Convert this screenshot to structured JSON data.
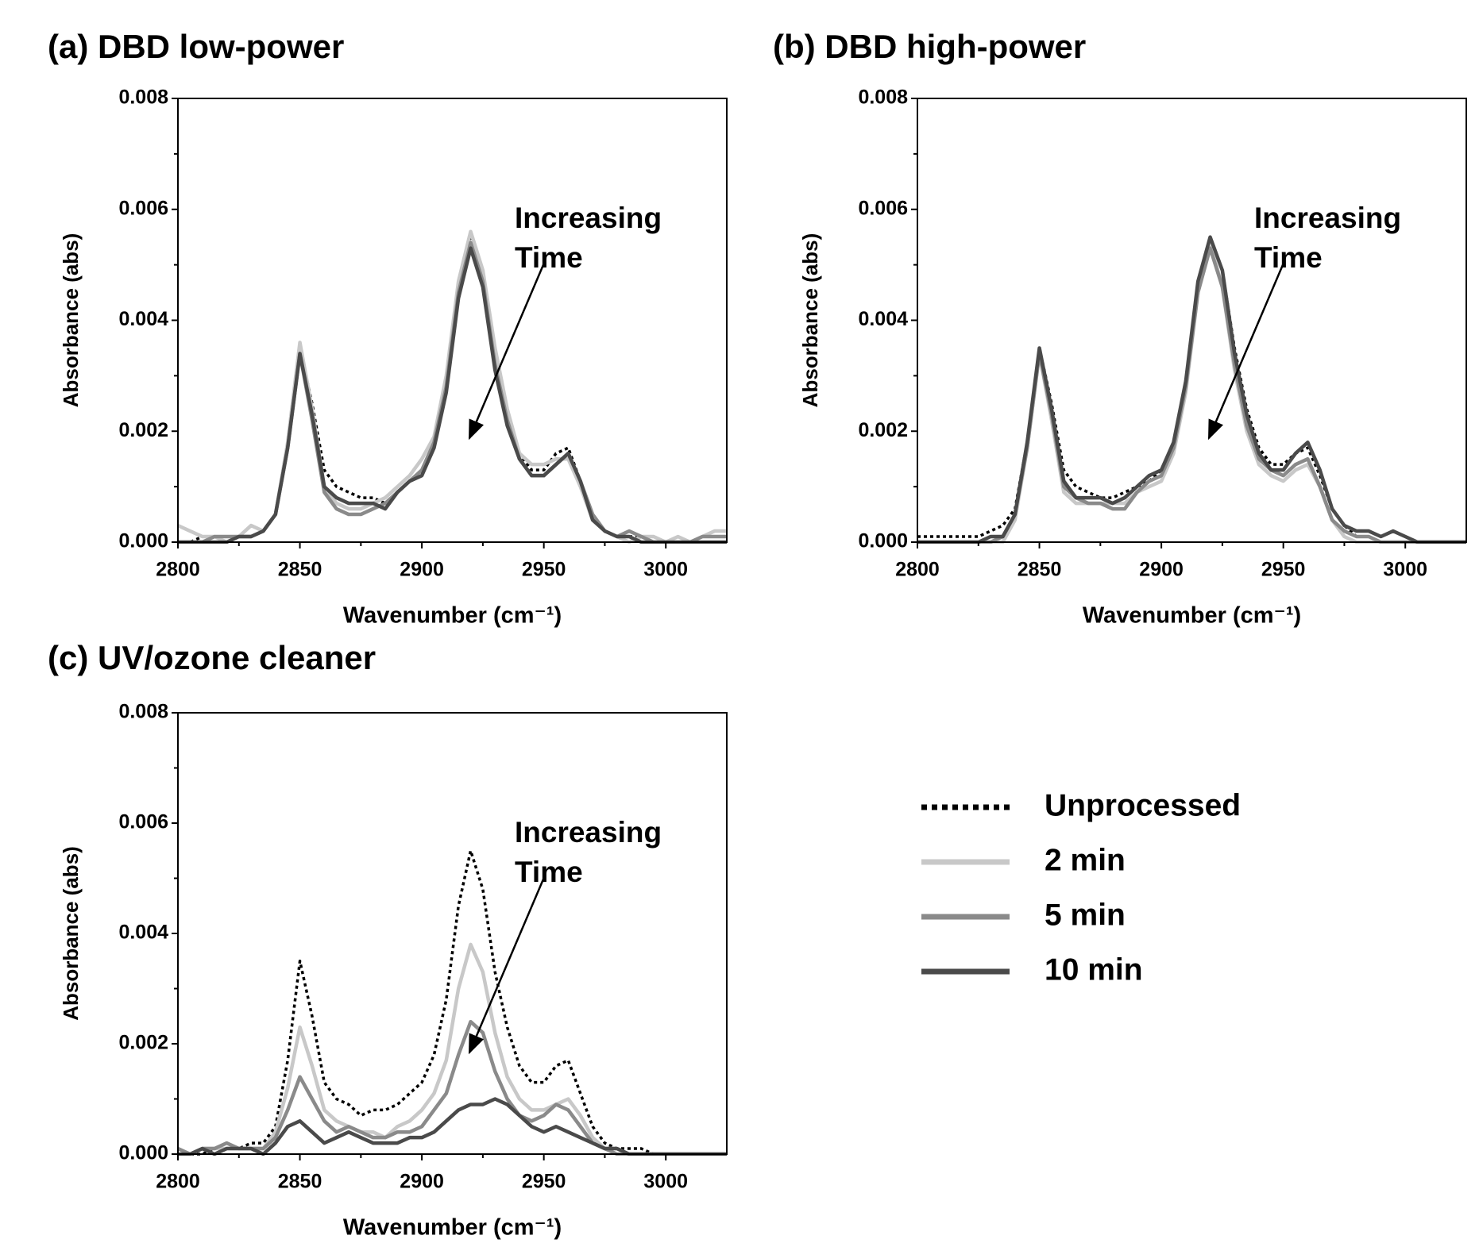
{
  "chart_data": [
    {
      "type": "line",
      "title": "(a) DBD low-power",
      "xlabel": "Wavenumber (cm⁻¹)",
      "ylabel": "Absorbance (abs)",
      "annotation_lines": [
        "Increasing",
        "Time"
      ],
      "xlim": [
        2800,
        3025
      ],
      "ylim": [
        0,
        0.008
      ],
      "xticks": [
        2800,
        2850,
        2900,
        2950,
        3000
      ],
      "xminor": [
        2825,
        2875,
        2925,
        2975
      ],
      "yticks": [
        {
          "value": 0,
          "label": "0.000"
        },
        {
          "value": 0.002,
          "label": "0.002"
        },
        {
          "value": 0.004,
          "label": "0.004"
        },
        {
          "value": 0.006,
          "label": "0.006"
        },
        {
          "value": 0.008,
          "label": "0.008"
        }
      ],
      "yminor": [
        0.001,
        0.003,
        0.005,
        0.007
      ],
      "x": [
        2800,
        2805,
        2810,
        2815,
        2820,
        2825,
        2830,
        2835,
        2840,
        2845,
        2850,
        2855,
        2860,
        2865,
        2870,
        2875,
        2880,
        2885,
        2890,
        2895,
        2900,
        2905,
        2910,
        2915,
        2920,
        2925,
        2930,
        2935,
        2940,
        2945,
        2950,
        2955,
        2960,
        2965,
        2970,
        2975,
        2980,
        2985,
        2990,
        2995,
        3000,
        3005,
        3010,
        3015,
        3020,
        3025
      ],
      "series": [
        {
          "color": "#000000",
          "linestyle": "dotted",
          "values": [
            0.0,
            0.0,
            0.0001,
            0.0001,
            0.0001,
            0.0001,
            0.0001,
            0.0002,
            0.0005,
            0.0017,
            0.0035,
            0.0025,
            0.0013,
            0.001,
            0.0009,
            0.0008,
            0.0008,
            0.0007,
            0.0009,
            0.0011,
            0.0013,
            0.0018,
            0.0028,
            0.0045,
            0.0055,
            0.0048,
            0.0033,
            0.0023,
            0.0016,
            0.0013,
            0.0013,
            0.0016,
            0.0017,
            0.0011,
            0.0005,
            0.0002,
            0.0001,
            0.0001,
            0.0001,
            0.0,
            0.0,
            0.0,
            0.0,
            0.0,
            0.0,
            0.0
          ]
        },
        {
          "color": "#c8c8c8",
          "linestyle": "solid",
          "values": [
            0.0003,
            0.0002,
            0.0001,
            0.0001,
            0.0,
            0.0001,
            0.0003,
            0.0002,
            0.0005,
            0.0018,
            0.0036,
            0.0024,
            0.001,
            0.0007,
            0.0006,
            0.0006,
            0.0007,
            0.0008,
            0.001,
            0.0012,
            0.0015,
            0.0019,
            0.003,
            0.0047,
            0.0056,
            0.0049,
            0.0035,
            0.0024,
            0.0016,
            0.0014,
            0.0014,
            0.0015,
            0.0015,
            0.001,
            0.0004,
            0.0002,
            0.0001,
            0.0,
            0.0001,
            0.0001,
            0.0,
            0.0001,
            0.0,
            0.0001,
            0.0002,
            0.0002
          ]
        },
        {
          "color": "#8a8a8a",
          "linestyle": "solid",
          "values": [
            0.0,
            0.0,
            0.0,
            0.0001,
            0.0001,
            0.0001,
            0.0001,
            0.0002,
            0.0005,
            0.0017,
            0.0034,
            0.0022,
            0.0009,
            0.0006,
            0.0005,
            0.0005,
            0.0006,
            0.0007,
            0.0009,
            0.0011,
            0.0013,
            0.0018,
            0.0028,
            0.0045,
            0.0054,
            0.0047,
            0.0032,
            0.0022,
            0.0015,
            0.0012,
            0.0012,
            0.0014,
            0.0016,
            0.0011,
            0.0005,
            0.0002,
            0.0001,
            0.0002,
            0.0001,
            0.0,
            0.0,
            0.0,
            0.0,
            0.0001,
            0.0001,
            0.0001
          ]
        },
        {
          "color": "#4a4a4a",
          "linestyle": "solid",
          "values": [
            0.0,
            0.0,
            0.0,
            0.0,
            0.0,
            0.0001,
            0.0001,
            0.0002,
            0.0005,
            0.0017,
            0.0034,
            0.0023,
            0.001,
            0.0008,
            0.0007,
            0.0007,
            0.0007,
            0.0006,
            0.0009,
            0.0011,
            0.0012,
            0.0017,
            0.0027,
            0.0044,
            0.0053,
            0.0046,
            0.0031,
            0.0021,
            0.0015,
            0.0012,
            0.0012,
            0.0014,
            0.0016,
            0.0011,
            0.0004,
            0.0002,
            0.0001,
            0.0001,
            0.0,
            0.0,
            0.0,
            0.0,
            0.0,
            0.0,
            0.0,
            0.0
          ]
        }
      ]
    },
    {
      "type": "line",
      "title": "(b) DBD high-power",
      "xlabel": "Wavenumber (cm⁻¹)",
      "ylabel": "Absorbance (abs)",
      "annotation_lines": [
        "Increasing",
        "Time"
      ],
      "xlim": [
        2800,
        3025
      ],
      "ylim": [
        0,
        0.008
      ],
      "xticks": [
        2800,
        2850,
        2900,
        2950,
        3000
      ],
      "xminor": [
        2825,
        2875,
        2925,
        2975
      ],
      "yticks": [
        {
          "value": 0,
          "label": "0.000"
        },
        {
          "value": 0.002,
          "label": "0.002"
        },
        {
          "value": 0.004,
          "label": "0.004"
        },
        {
          "value": 0.006,
          "label": "0.006"
        },
        {
          "value": 0.008,
          "label": "0.008"
        }
      ],
      "yminor": [
        0.001,
        0.003,
        0.005,
        0.007
      ],
      "x": [
        2800,
        2805,
        2810,
        2815,
        2820,
        2825,
        2830,
        2835,
        2840,
        2845,
        2850,
        2855,
        2860,
        2865,
        2870,
        2875,
        2880,
        2885,
        2890,
        2895,
        2900,
        2905,
        2910,
        2915,
        2920,
        2925,
        2930,
        2935,
        2940,
        2945,
        2950,
        2955,
        2960,
        2965,
        2970,
        2975,
        2980,
        2985,
        2990,
        2995,
        3000,
        3005,
        3010,
        3015,
        3020,
        3025
      ],
      "series": [
        {
          "color": "#000000",
          "linestyle": "dotted",
          "values": [
            0.0001,
            0.0001,
            0.0001,
            0.0001,
            0.0001,
            0.0001,
            0.0002,
            0.0003,
            0.0006,
            0.0018,
            0.0035,
            0.0025,
            0.0013,
            0.001,
            0.0009,
            0.0008,
            0.0008,
            0.0009,
            0.001,
            0.0011,
            0.0013,
            0.0018,
            0.0029,
            0.0046,
            0.0055,
            0.0049,
            0.0035,
            0.0024,
            0.0017,
            0.0014,
            0.0014,
            0.0016,
            0.0017,
            0.0012,
            0.0006,
            0.0003,
            0.0001,
            0.0001,
            0.0,
            0.0,
            0.0,
            0.0,
            0.0,
            0.0,
            0.0,
            0.0
          ]
        },
        {
          "color": "#c8c8c8",
          "linestyle": "solid",
          "values": [
            0.0,
            0.0,
            0.0,
            0.0,
            0.0,
            0.0,
            0.0,
            0.0,
            0.0004,
            0.0017,
            0.0034,
            0.0022,
            0.0009,
            0.0007,
            0.0007,
            0.0007,
            0.0007,
            0.0007,
            0.0009,
            0.001,
            0.0011,
            0.0016,
            0.0027,
            0.0045,
            0.0054,
            0.0046,
            0.0031,
            0.002,
            0.0014,
            0.0012,
            0.0011,
            0.0013,
            0.0014,
            0.001,
            0.0004,
            0.0001,
            0.0,
            0.0,
            0.0,
            0.0,
            0.0,
            0.0,
            0.0,
            0.0,
            0.0,
            0.0
          ]
        },
        {
          "color": "#8a8a8a",
          "linestyle": "solid",
          "values": [
            0.0,
            0.0,
            0.0,
            0.0,
            0.0,
            0.0,
            0.0,
            0.0001,
            0.0005,
            0.0017,
            0.0034,
            0.0023,
            0.001,
            0.0008,
            0.0007,
            0.0007,
            0.0006,
            0.0006,
            0.0009,
            0.0011,
            0.0012,
            0.0017,
            0.0028,
            0.0045,
            0.0053,
            0.0046,
            0.0032,
            0.0021,
            0.0015,
            0.0013,
            0.0012,
            0.0014,
            0.0015,
            0.001,
            0.0004,
            0.0002,
            0.0001,
            0.0001,
            0.0,
            0.0,
            0.0,
            0.0,
            0.0,
            0.0,
            0.0,
            0.0
          ]
        },
        {
          "color": "#4a4a4a",
          "linestyle": "solid",
          "values": [
            0.0,
            0.0,
            0.0,
            0.0,
            0.0,
            0.0,
            0.0001,
            0.0001,
            0.0005,
            0.0018,
            0.0035,
            0.0024,
            0.0011,
            0.0008,
            0.0008,
            0.0008,
            0.0007,
            0.0008,
            0.001,
            0.0012,
            0.0013,
            0.0018,
            0.0029,
            0.0047,
            0.0055,
            0.0049,
            0.0034,
            0.0023,
            0.0016,
            0.0013,
            0.0013,
            0.0016,
            0.0018,
            0.0013,
            0.0006,
            0.0003,
            0.0002,
            0.0002,
            0.0001,
            0.0002,
            0.0001,
            0.0,
            0.0,
            0.0,
            0.0,
            0.0
          ]
        }
      ]
    },
    {
      "type": "line",
      "title": "(c) UV/ozone cleaner",
      "xlabel": "Wavenumber (cm⁻¹)",
      "ylabel": "Absorbance (abs)",
      "annotation_lines": [
        "Increasing",
        "Time"
      ],
      "legend": "right",
      "xlim": [
        2800,
        3025
      ],
      "ylim": [
        0,
        0.008
      ],
      "xticks": [
        2800,
        2850,
        2900,
        2950,
        3000
      ],
      "xminor": [
        2825,
        2875,
        2925,
        2975
      ],
      "yticks": [
        {
          "value": 0,
          "label": "0.000"
        },
        {
          "value": 0.002,
          "label": "0.002"
        },
        {
          "value": 0.004,
          "label": "0.004"
        },
        {
          "value": 0.006,
          "label": "0.006"
        },
        {
          "value": 0.008,
          "label": "0.008"
        }
      ],
      "yminor": [
        0.001,
        0.003,
        0.005,
        0.007
      ],
      "x": [
        2800,
        2805,
        2810,
        2815,
        2820,
        2825,
        2830,
        2835,
        2840,
        2845,
        2850,
        2855,
        2860,
        2865,
        2870,
        2875,
        2880,
        2885,
        2890,
        2895,
        2900,
        2905,
        2910,
        2915,
        2920,
        2925,
        2930,
        2935,
        2940,
        2945,
        2950,
        2955,
        2960,
        2965,
        2970,
        2975,
        2980,
        2985,
        2990,
        2995,
        3000,
        3005,
        3010,
        3015,
        3020,
        3025
      ],
      "series": [
        {
          "name": "Unprocessed",
          "color": "#000000",
          "linestyle": "dotted",
          "values": [
            0.0,
            0.0,
            0.0,
            0.0001,
            0.0001,
            0.0001,
            0.0002,
            0.0002,
            0.0005,
            0.0017,
            0.0035,
            0.0025,
            0.0013,
            0.001,
            0.0009,
            0.0007,
            0.0008,
            0.0008,
            0.0009,
            0.0011,
            0.0013,
            0.0018,
            0.0028,
            0.0045,
            0.0055,
            0.0048,
            0.0033,
            0.0023,
            0.0016,
            0.0013,
            0.0013,
            0.0016,
            0.0017,
            0.0011,
            0.0005,
            0.0002,
            0.0001,
            0.0001,
            0.0001,
            0.0,
            0.0,
            0.0,
            0.0,
            0.0,
            0.0,
            0.0
          ]
        },
        {
          "name": "2 min",
          "color": "#c8c8c8",
          "linestyle": "solid",
          "values": [
            0.0001,
            0.0,
            0.0001,
            0.0001,
            0.0001,
            0.0001,
            0.0001,
            0.0001,
            0.0004,
            0.0012,
            0.0023,
            0.0016,
            0.0008,
            0.0006,
            0.0005,
            0.0004,
            0.0004,
            0.0003,
            0.0005,
            0.0006,
            0.0008,
            0.0011,
            0.0017,
            0.003,
            0.0038,
            0.0033,
            0.0022,
            0.0014,
            0.001,
            0.0008,
            0.0008,
            0.0009,
            0.001,
            0.0007,
            0.0003,
            0.0001,
            0.0001,
            0.0,
            0.0,
            0.0,
            0.0,
            0.0,
            0.0,
            0.0,
            0.0,
            0.0
          ]
        },
        {
          "name": "5 min",
          "color": "#8a8a8a",
          "linestyle": "solid",
          "values": [
            0.0001,
            0.0,
            0.0001,
            0.0001,
            0.0002,
            0.0001,
            0.0001,
            0.0001,
            0.0003,
            0.0008,
            0.0014,
            0.001,
            0.0006,
            0.0004,
            0.0005,
            0.0004,
            0.0003,
            0.0003,
            0.0004,
            0.0004,
            0.0005,
            0.0008,
            0.0011,
            0.0018,
            0.0024,
            0.0022,
            0.0015,
            0.001,
            0.0007,
            0.0006,
            0.0007,
            0.0009,
            0.0008,
            0.0005,
            0.0002,
            0.0001,
            0.0,
            0.0,
            0.0,
            0.0,
            0.0,
            0.0,
            0.0,
            0.0,
            0.0,
            0.0
          ]
        },
        {
          "name": "10 min",
          "color": "#4a4a4a",
          "linestyle": "solid",
          "values": [
            0.0,
            0.0,
            0.0001,
            0.0,
            0.0001,
            0.0001,
            0.0001,
            0.0,
            0.0002,
            0.0005,
            0.0006,
            0.0004,
            0.0002,
            0.0003,
            0.0004,
            0.0003,
            0.0002,
            0.0002,
            0.0002,
            0.0003,
            0.0003,
            0.0004,
            0.0006,
            0.0008,
            0.0009,
            0.0009,
            0.001,
            0.0009,
            0.0007,
            0.0005,
            0.0004,
            0.0005,
            0.0004,
            0.0003,
            0.0002,
            0.0001,
            0.0001,
            0.0,
            0.0,
            0.0,
            0.0,
            0.0,
            0.0,
            0.0,
            0.0,
            0.0
          ]
        }
      ]
    }
  ]
}
